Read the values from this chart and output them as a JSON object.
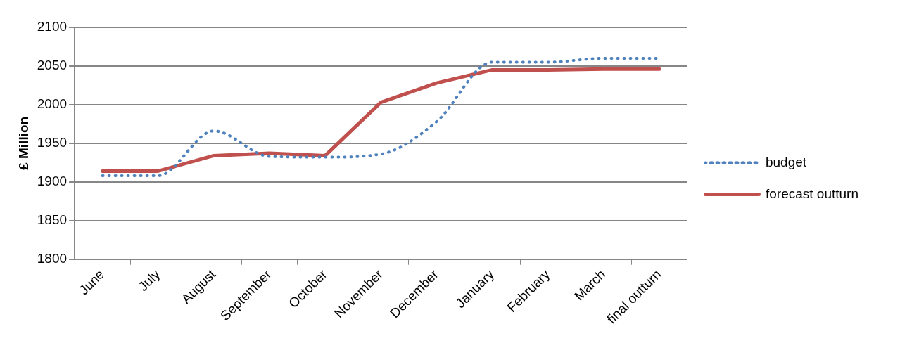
{
  "chart_data": {
    "type": "line",
    "ylabel": "£ Million",
    "categories": [
      "June",
      "July",
      "August",
      "September",
      "October",
      "November",
      "December",
      "January",
      "February",
      "March",
      "final outturn"
    ],
    "series": [
      {
        "name": "budget",
        "color": "#4f81bd",
        "line_style": "dotted",
        "values": [
          1908,
          1908,
          1966,
          1933,
          1932,
          1936,
          1978,
          2055,
          2055,
          2060,
          2060
        ]
      },
      {
        "name": "forecast outturn",
        "color": "#c0504d",
        "line_style": "solid",
        "values": [
          1914,
          1914,
          1934,
          1937,
          1934,
          2003,
          2028,
          2045,
          2045,
          2046,
          2046
        ]
      }
    ],
    "ylim": [
      1800,
      2100
    ],
    "yticks": [
      1800,
      1850,
      1900,
      1950,
      2000,
      2050,
      2100
    ],
    "grid": "y",
    "legend": "right",
    "marker": "none"
  }
}
